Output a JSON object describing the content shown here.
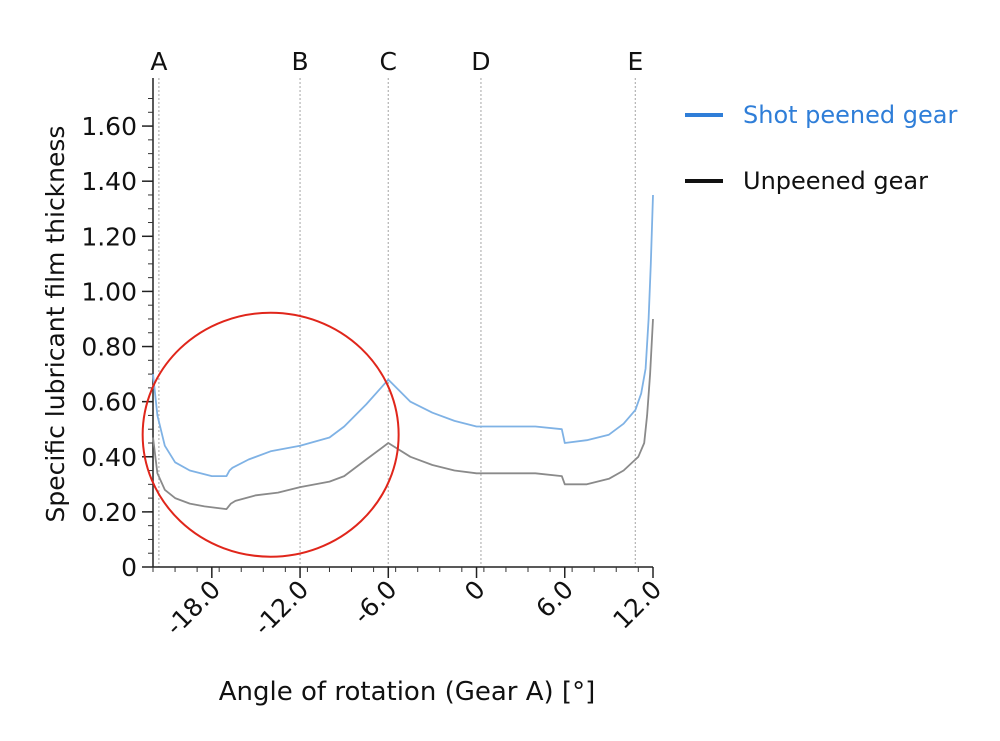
{
  "chart_data": {
    "type": "line",
    "title": "",
    "xlabel": "Angle of rotation (Gear A) [°]",
    "ylabel": "Specific lubricant film thickness",
    "xlim": [
      -22.0,
      12.0
    ],
    "ylim": [
      0,
      1.72
    ],
    "x_ticks": [
      -18.0,
      -12.0,
      -6.0,
      0,
      6.0,
      12.0
    ],
    "x_tick_labels": [
      "-18.0",
      "-12.0",
      "-6.0",
      "0",
      "6.0",
      "12.0"
    ],
    "y_ticks": [
      0,
      0.2,
      0.4,
      0.6,
      0.8,
      1.0,
      1.2,
      1.4,
      1.6
    ],
    "y_tick_labels": [
      "0",
      "0.20",
      "0.40",
      "0.60",
      "0.80",
      "1.00",
      "1.20",
      "1.40",
      "1.60"
    ],
    "grid": false,
    "legend_position": "top-right outside plot",
    "markers": [
      {
        "label": "A",
        "x": -21.6
      },
      {
        "label": "B",
        "x": -12.0
      },
      {
        "label": "C",
        "x": -6.0
      },
      {
        "label": "D",
        "x": 0.3
      },
      {
        "label": "E",
        "x": 10.8
      }
    ],
    "series": [
      {
        "name": "Shot peened gear",
        "color": "#7fb2e5",
        "legend_text_color": "#2f7ed8",
        "points": [
          [
            -22.0,
            0.7
          ],
          [
            -21.7,
            0.55
          ],
          [
            -21.2,
            0.44
          ],
          [
            -20.5,
            0.38
          ],
          [
            -19.5,
            0.35
          ],
          [
            -18.0,
            0.33
          ],
          [
            -17.5,
            0.33
          ],
          [
            -17.0,
            0.33
          ],
          [
            -16.8,
            0.35
          ],
          [
            -16.6,
            0.36
          ],
          [
            -15.5,
            0.39
          ],
          [
            -14.0,
            0.42
          ],
          [
            -12.0,
            0.44
          ],
          [
            -10.0,
            0.47
          ],
          [
            -9.0,
            0.51
          ],
          [
            -7.5,
            0.59
          ],
          [
            -6.0,
            0.68
          ],
          [
            -4.5,
            0.6
          ],
          [
            -3.0,
            0.56
          ],
          [
            -1.5,
            0.53
          ],
          [
            0.0,
            0.51
          ],
          [
            2.0,
            0.51
          ],
          [
            4.0,
            0.51
          ],
          [
            5.8,
            0.5
          ],
          [
            6.0,
            0.45
          ],
          [
            7.5,
            0.46
          ],
          [
            9.0,
            0.48
          ],
          [
            10.0,
            0.52
          ],
          [
            10.8,
            0.57
          ],
          [
            11.2,
            0.63
          ],
          [
            11.5,
            0.72
          ],
          [
            11.7,
            0.9
          ],
          [
            11.85,
            1.1
          ],
          [
            12.0,
            1.35
          ]
        ]
      },
      {
        "name": "Unpeened gear",
        "color": "#8a8a8a",
        "legend_text_color": "#111111",
        "points": [
          [
            -22.0,
            0.47
          ],
          [
            -21.7,
            0.34
          ],
          [
            -21.2,
            0.28
          ],
          [
            -20.5,
            0.25
          ],
          [
            -19.5,
            0.23
          ],
          [
            -18.5,
            0.22
          ],
          [
            -17.0,
            0.21
          ],
          [
            -16.7,
            0.23
          ],
          [
            -16.4,
            0.24
          ],
          [
            -15.0,
            0.26
          ],
          [
            -13.5,
            0.27
          ],
          [
            -12.0,
            0.29
          ],
          [
            -10.0,
            0.31
          ],
          [
            -9.0,
            0.33
          ],
          [
            -7.5,
            0.39
          ],
          [
            -6.0,
            0.45
          ],
          [
            -4.5,
            0.4
          ],
          [
            -3.0,
            0.37
          ],
          [
            -1.5,
            0.35
          ],
          [
            0.0,
            0.34
          ],
          [
            2.0,
            0.34
          ],
          [
            4.0,
            0.34
          ],
          [
            5.8,
            0.33
          ],
          [
            6.0,
            0.3
          ],
          [
            7.5,
            0.3
          ],
          [
            9.0,
            0.32
          ],
          [
            10.0,
            0.35
          ],
          [
            11.0,
            0.4
          ],
          [
            11.4,
            0.45
          ],
          [
            11.6,
            0.55
          ],
          [
            11.8,
            0.7
          ],
          [
            12.0,
            0.9
          ]
        ]
      }
    ],
    "annotation_circle": {
      "color": "#e0261b",
      "center": [
        -14.0,
        0.48
      ],
      "radius_y": 0.41
    }
  }
}
